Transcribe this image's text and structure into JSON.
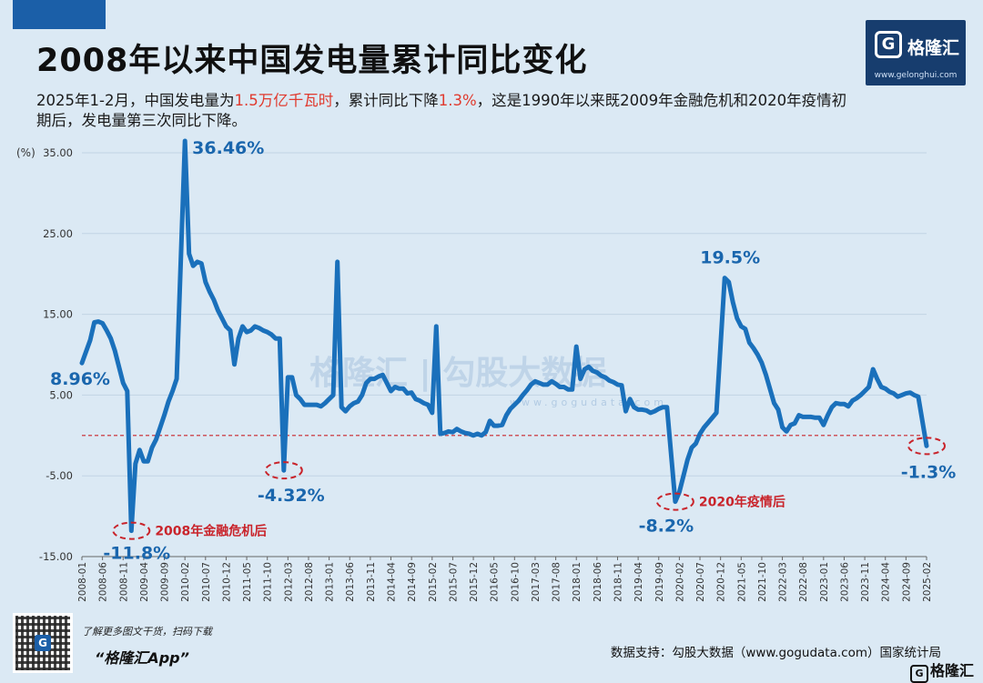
{
  "title": "2008年以来中国发电量累计同比变化",
  "subtitle": {
    "part1": "2025年1-2月，中国发电量为",
    "hl1": "1.5万亿千瓦时",
    "part2": "，累计同比下降",
    "hl2": "1.3%",
    "part3": "，这是1990年以来既2009年金融危机和2020年疫情初期后，发电量第三次同比下降。"
  },
  "logo": {
    "name": "格隆汇",
    "url": "www.gelonghui.com",
    "mark": "G"
  },
  "watermark": {
    "main": "格隆汇 | 勾股大数据",
    "url": "www.gogudata.com"
  },
  "footer": {
    "qr_note": "了解更多图文干货，扫码下载",
    "app_name": "“格隆汇App”",
    "source": "数据支持：勾股大数据（www.gogudata.com）国家统计局",
    "logo_text": "格隆汇"
  },
  "colors": {
    "line": "#1a70bb",
    "ref_line": "#c9242b",
    "annotation": "#c9242b",
    "axis_text": "#333333",
    "value_label": "#1a66ad"
  },
  "chart_data": {
    "type": "line",
    "unit_label": "(%)",
    "ylim": [
      -15,
      35
    ],
    "yticks": [
      "35.00",
      "25.00",
      "15.00",
      "5.00",
      "-5.00",
      "-15.00"
    ],
    "ytick_values": [
      35,
      25,
      15,
      5,
      -5,
      -15
    ],
    "reference_line": 0,
    "xticks": [
      "2008-01",
      "2008-06",
      "2008-11",
      "2009-04",
      "2009-09",
      "2010-02",
      "2010-07",
      "2010-12",
      "2011-05",
      "2011-10",
      "2012-03",
      "2012-08",
      "2013-01",
      "2013-06",
      "2013-11",
      "2014-04",
      "2014-09",
      "2015-02",
      "2015-07",
      "2015-12",
      "2016-05",
      "2016-10",
      "2017-03",
      "2017-08",
      "2018-01",
      "2018-06",
      "2018-11",
      "2019-04",
      "2019-09",
      "2020-02",
      "2020-07",
      "2020-12",
      "2021-05",
      "2021-10",
      "2022-03",
      "2022-08",
      "2023-01",
      "2023-06",
      "2023-11",
      "2024-04",
      "2024-09",
      "2025-02"
    ],
    "series": [
      {
        "points": [
          [
            "2008-01",
            8.96
          ],
          [
            "2008-03",
            11.8
          ],
          [
            "2008-04",
            14.0
          ],
          [
            "2008-05",
            14.1
          ],
          [
            "2008-06",
            13.9
          ],
          [
            "2008-07",
            13.0
          ],
          [
            "2008-08",
            12.0
          ],
          [
            "2008-09",
            10.5
          ],
          [
            "2008-10",
            8.5
          ],
          [
            "2008-11",
            6.5
          ],
          [
            "2008-12",
            5.5
          ],
          [
            "2009-01",
            -11.8
          ],
          [
            "2009-02",
            -3.5
          ],
          [
            "2009-03",
            -1.8
          ],
          [
            "2009-04",
            -3.2
          ],
          [
            "2009-05",
            -3.2
          ],
          [
            "2009-06",
            -1.5
          ],
          [
            "2009-07",
            -0.5
          ],
          [
            "2009-08",
            1.0
          ],
          [
            "2009-09",
            2.5
          ],
          [
            "2009-10",
            4.2
          ],
          [
            "2009-11",
            5.5
          ],
          [
            "2009-12",
            7.0
          ],
          [
            "2010-02",
            36.46
          ],
          [
            "2010-03",
            22.5
          ],
          [
            "2010-04",
            21.0
          ],
          [
            "2010-05",
            21.5
          ],
          [
            "2010-06",
            21.3
          ],
          [
            "2010-07",
            19.0
          ],
          [
            "2010-08",
            17.8
          ],
          [
            "2010-09",
            16.8
          ],
          [
            "2010-10",
            15.5
          ],
          [
            "2010-11",
            14.5
          ],
          [
            "2010-12",
            13.5
          ],
          [
            "2011-01",
            13.0
          ],
          [
            "2011-02",
            8.8
          ],
          [
            "2011-03",
            12.0
          ],
          [
            "2011-04",
            13.5
          ],
          [
            "2011-05",
            12.8
          ],
          [
            "2011-06",
            13.0
          ],
          [
            "2011-07",
            13.5
          ],
          [
            "2011-08",
            13.3
          ],
          [
            "2011-09",
            13.0
          ],
          [
            "2011-10",
            12.8
          ],
          [
            "2011-11",
            12.5
          ],
          [
            "2011-12",
            12.0
          ],
          [
            "2012-01",
            12.0
          ],
          [
            "2012-02",
            -4.32
          ],
          [
            "2012-03",
            7.2
          ],
          [
            "2012-04",
            7.2
          ],
          [
            "2012-05",
            5.0
          ],
          [
            "2012-06",
            4.5
          ],
          [
            "2012-07",
            3.8
          ],
          [
            "2012-08",
            3.8
          ],
          [
            "2012-09",
            3.8
          ],
          [
            "2012-10",
            3.8
          ],
          [
            "2012-11",
            3.6
          ],
          [
            "2012-12",
            4.0
          ],
          [
            "2013-01",
            4.5
          ],
          [
            "2013-02",
            5.0
          ],
          [
            "2013-03",
            21.5
          ],
          [
            "2013-04",
            3.5
          ],
          [
            "2013-05",
            3.0
          ],
          [
            "2013-06",
            3.6
          ],
          [
            "2013-07",
            4.0
          ],
          [
            "2013-08",
            4.2
          ],
          [
            "2013-09",
            5.0
          ],
          [
            "2013-10",
            6.5
          ],
          [
            "2013-11",
            7.0
          ],
          [
            "2013-12",
            7.0
          ],
          [
            "2014-01",
            7.3
          ],
          [
            "2014-02",
            7.5
          ],
          [
            "2014-03",
            6.5
          ],
          [
            "2014-04",
            5.5
          ],
          [
            "2014-05",
            6.0
          ],
          [
            "2014-06",
            5.8
          ],
          [
            "2014-07",
            5.8
          ],
          [
            "2014-08",
            5.2
          ],
          [
            "2014-09",
            5.3
          ],
          [
            "2014-10",
            4.5
          ],
          [
            "2014-11",
            4.3
          ],
          [
            "2014-12",
            4.0
          ],
          [
            "2015-01",
            3.8
          ],
          [
            "2015-02",
            2.8
          ],
          [
            "2015-03",
            13.5
          ],
          [
            "2015-04",
            0.2
          ],
          [
            "2015-05",
            0.3
          ],
          [
            "2015-06",
            0.5
          ],
          [
            "2015-07",
            0.4
          ],
          [
            "2015-08",
            0.8
          ],
          [
            "2015-09",
            0.5
          ],
          [
            "2015-10",
            0.3
          ],
          [
            "2015-11",
            0.2
          ],
          [
            "2015-12",
            0.0
          ],
          [
            "2016-01",
            0.2
          ],
          [
            "2016-02",
            0.0
          ],
          [
            "2016-03",
            0.4
          ],
          [
            "2016-04",
            1.8
          ],
          [
            "2016-05",
            1.2
          ],
          [
            "2016-06",
            1.2
          ],
          [
            "2016-07",
            1.3
          ],
          [
            "2016-08",
            2.5
          ],
          [
            "2016-09",
            3.3
          ],
          [
            "2016-10",
            3.8
          ],
          [
            "2016-11",
            4.3
          ],
          [
            "2016-12",
            5.0
          ],
          [
            "2017-01",
            5.6
          ],
          [
            "2017-02",
            6.3
          ],
          [
            "2017-03",
            6.7
          ],
          [
            "2017-04",
            6.5
          ],
          [
            "2017-05",
            6.3
          ],
          [
            "2017-06",
            6.3
          ],
          [
            "2017-07",
            6.7
          ],
          [
            "2017-08",
            6.4
          ],
          [
            "2017-09",
            6.0
          ],
          [
            "2017-10",
            6.0
          ],
          [
            "2017-11",
            5.7
          ],
          [
            "2017-12",
            5.7
          ],
          [
            "2018-01",
            11.0
          ],
          [
            "2018-02",
            7.0
          ],
          [
            "2018-03",
            8.2
          ],
          [
            "2018-04",
            8.5
          ],
          [
            "2018-05",
            8.0
          ],
          [
            "2018-06",
            7.8
          ],
          [
            "2018-07",
            7.4
          ],
          [
            "2018-08",
            7.2
          ],
          [
            "2018-09",
            6.8
          ],
          [
            "2018-10",
            6.6
          ],
          [
            "2018-11",
            6.3
          ],
          [
            "2018-12",
            6.2
          ],
          [
            "2019-01",
            3.0
          ],
          [
            "2019-02",
            4.5
          ],
          [
            "2019-03",
            3.5
          ],
          [
            "2019-04",
            3.2
          ],
          [
            "2019-05",
            3.2
          ],
          [
            "2019-06",
            3.1
          ],
          [
            "2019-07",
            2.8
          ],
          [
            "2019-08",
            3.0
          ],
          [
            "2019-09",
            3.3
          ],
          [
            "2019-10",
            3.5
          ],
          [
            "2019-11",
            3.5
          ],
          [
            "2020-01",
            -8.2
          ],
          [
            "2020-02",
            -7.0
          ],
          [
            "2020-03",
            -5.0
          ],
          [
            "2020-04",
            -3.0
          ],
          [
            "2020-05",
            -1.5
          ],
          [
            "2020-06",
            -1.0
          ],
          [
            "2020-07",
            0.2
          ],
          [
            "2020-08",
            1.0
          ],
          [
            "2020-09",
            1.6
          ],
          [
            "2020-10",
            2.2
          ],
          [
            "2020-11",
            2.8
          ],
          [
            "2021-01",
            19.5
          ],
          [
            "2021-02",
            19.0
          ],
          [
            "2021-03",
            16.5
          ],
          [
            "2021-04",
            14.5
          ],
          [
            "2021-05",
            13.5
          ],
          [
            "2021-06",
            13.2
          ],
          [
            "2021-07",
            11.5
          ],
          [
            "2021-08",
            10.8
          ],
          [
            "2021-09",
            10.0
          ],
          [
            "2021-10",
            9.0
          ],
          [
            "2021-11",
            7.5
          ],
          [
            "2022-01",
            4.0
          ],
          [
            "2022-02",
            3.2
          ],
          [
            "2022-03",
            1.0
          ],
          [
            "2022-04",
            0.5
          ],
          [
            "2022-05",
            1.3
          ],
          [
            "2022-06",
            1.5
          ],
          [
            "2022-07",
            2.5
          ],
          [
            "2022-08",
            2.3
          ],
          [
            "2022-09",
            2.3
          ],
          [
            "2022-10",
            2.3
          ],
          [
            "2022-11",
            2.2
          ],
          [
            "2022-12",
            2.2
          ],
          [
            "2023-01",
            1.3
          ],
          [
            "2023-02",
            2.5
          ],
          [
            "2023-03",
            3.5
          ],
          [
            "2023-04",
            4.0
          ],
          [
            "2023-05",
            3.9
          ],
          [
            "2023-06",
            3.9
          ],
          [
            "2023-07",
            3.6
          ],
          [
            "2023-08",
            4.3
          ],
          [
            "2023-09",
            4.6
          ],
          [
            "2023-10",
            5.0
          ],
          [
            "2023-11",
            5.5
          ],
          [
            "2023-12",
            6.0
          ],
          [
            "2024-01",
            8.2
          ],
          [
            "2024-02",
            7.0
          ],
          [
            "2024-03",
            6.0
          ],
          [
            "2024-04",
            5.8
          ],
          [
            "2024-05",
            5.4
          ],
          [
            "2024-06",
            5.2
          ],
          [
            "2024-07",
            4.8
          ],
          [
            "2024-08",
            5.0
          ],
          [
            "2024-09",
            5.2
          ],
          [
            "2024-10",
            5.3
          ],
          [
            "2024-11",
            5.0
          ],
          [
            "2024-12",
            4.8
          ],
          [
            "2025-02",
            -1.3
          ]
        ]
      }
    ],
    "value_labels": [
      {
        "x": "2008-01",
        "y": 8.96,
        "text": "8.96%"
      },
      {
        "x": "2009-01",
        "y": -11.8,
        "text": "-11.8%"
      },
      {
        "x": "2010-02",
        "y": 36.46,
        "text": "36.46%"
      },
      {
        "x": "2012-02",
        "y": -4.32,
        "text": "-4.32%"
      },
      {
        "x": "2020-01",
        "y": -8.2,
        "text": "-8.2%"
      },
      {
        "x": "2021-01",
        "y": 19.5,
        "text": "19.5%"
      },
      {
        "x": "2025-02",
        "y": -1.3,
        "text": "-1.3%"
      }
    ],
    "annotations": [
      {
        "x": "2009-01",
        "y": -11.8,
        "text": "2008年金融危机后"
      },
      {
        "x": "2012-02",
        "y": -4.32,
        "text": ""
      },
      {
        "x": "2020-01",
        "y": -8.2,
        "text": "2020年疫情后"
      },
      {
        "x": "2025-02",
        "y": -1.3,
        "text": ""
      }
    ]
  }
}
